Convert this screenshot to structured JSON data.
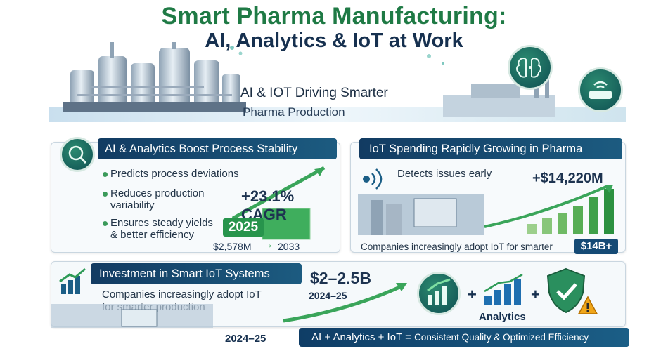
{
  "header": {
    "title_line1": "Smart Pharma Manufacturing:",
    "title_line2": "AI, Analytics & IoT at Work"
  },
  "hero": {
    "subtitle_line1": "AI & IOT Driving Smarter",
    "subtitle_line2": "Pharma Production",
    "icons": [
      "brain-chip-icon",
      "wifi-router-icon"
    ]
  },
  "card_ai": {
    "heading": "AI & Analytics Boost Process Stability",
    "bullets": [
      "Predicts process deviations",
      "Reduces production",
      "variability",
      "Ensures steady yields",
      "& better efficiency"
    ],
    "cagr": "+23.1% CAGR",
    "year_start": "2025",
    "value_start": "$2,578M",
    "year_end": "2033",
    "icon": "brain-search-icon"
  },
  "card_iot": {
    "heading": "IoT Spending Rapidly Growing in Pharma",
    "note": "Detects issues early",
    "value": "+$14,220M",
    "caption": "Companies increasingly adopt IoT for smarter",
    "badge": "$14B+",
    "icon": "sensor-signal-icon"
  },
  "card_invest": {
    "heading": "Investment in Smart IoT Systems",
    "text_line1": "Companies increasingly adopt IoT",
    "text_line2": "for smarter production",
    "amount": "$2–2.5B",
    "amount_period": "2024–25",
    "period_label": "2024–25",
    "icon": "growth-chart-icon"
  },
  "formula": {
    "plus1": "+",
    "plus2": "+",
    "analytics_label": "Analytics",
    "equation_prefix": "AI + Analytics + IoT = ",
    "equation_result": "Consistent Quality & Optimized Efficiency",
    "icons": [
      "growth-arrow-icon",
      "bar-chart-icon",
      "shield-check-icon",
      "warning-icon"
    ]
  },
  "colors": {
    "title_green": "#1f7a45",
    "navy": "#16304f",
    "banner": "#123b62",
    "chart_green": "#3aa55a"
  }
}
